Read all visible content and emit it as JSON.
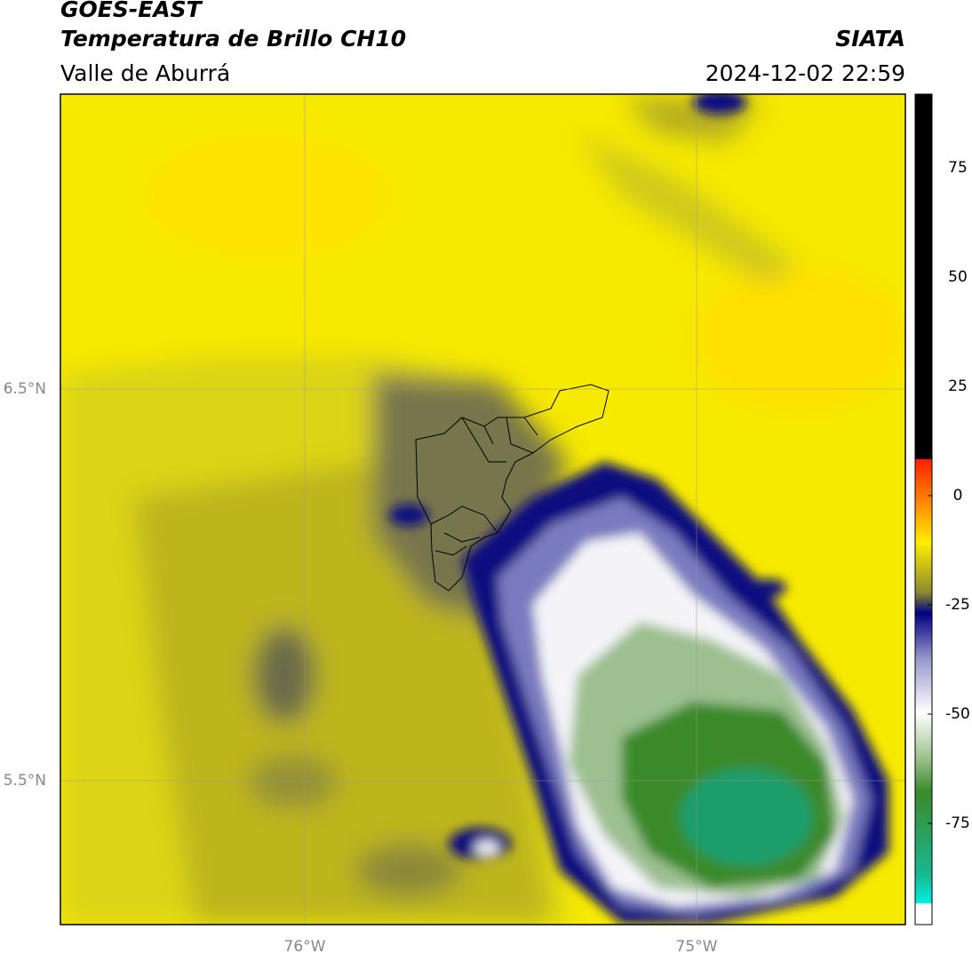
{
  "header": {
    "title": "GOES-EAST",
    "subtitle": "Temperatura de Brillo CH10",
    "region": "Valle de Aburrá",
    "source": "SIATA",
    "datetime": "2024-12-02 22:59"
  },
  "map": {
    "lat_labels": [
      "6.5°N",
      "5.5°N"
    ],
    "lon_labels": [
      "76°W",
      "75°W"
    ]
  },
  "colorbar": {
    "ticks": [
      75,
      50,
      25,
      0,
      -25,
      -50,
      -75
    ]
  }
}
